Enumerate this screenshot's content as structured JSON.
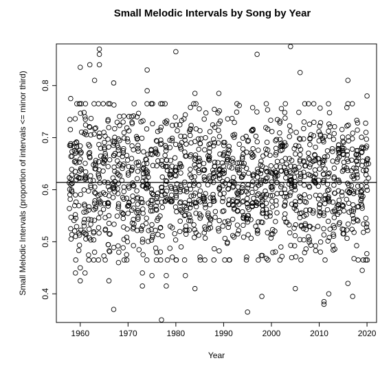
{
  "chart_data": {
    "type": "scatter",
    "title": "Small Melodic Intervals by Song by Year",
    "xlabel": "Year",
    "ylabel": "Small Melodic Intervals (proportion of intervals <= minor third)",
    "xlim": [
      1955,
      2022
    ],
    "ylim": [
      0.345,
      0.88
    ],
    "xticks": [
      1960,
      1970,
      1980,
      1990,
      2000,
      2010,
      2020
    ],
    "yticks": [
      0.4,
      0.5,
      0.6,
      0.7,
      0.8
    ],
    "marker": "open-circle",
    "point_color": "#000000",
    "hline": {
      "y": 0.614,
      "label": ""
    },
    "years": [
      1958,
      2020
    ],
    "points_per_year": 24,
    "points": [
      [
        1958,
        0.775
      ],
      [
        1958,
        0.685
      ],
      [
        1958,
        0.525
      ],
      [
        1958,
        0.61
      ],
      [
        1959,
        0.44
      ],
      [
        1959,
        0.59
      ],
      [
        1959,
        0.67
      ],
      [
        1960,
        0.835
      ],
      [
        1960,
        0.45
      ],
      [
        1960,
        0.425
      ],
      [
        1961,
        0.74
      ],
      [
        1961,
        0.62
      ],
      [
        1961,
        0.44
      ],
      [
        1962,
        0.84
      ],
      [
        1962,
        0.72
      ],
      [
        1963,
        0.81
      ],
      [
        1963,
        0.48
      ],
      [
        1964,
        0.87
      ],
      [
        1964,
        0.86
      ],
      [
        1964,
        0.84
      ],
      [
        1966,
        0.425
      ],
      [
        1966,
        0.55
      ],
      [
        1967,
        0.37
      ],
      [
        1967,
        0.805
      ],
      [
        1968,
        0.46
      ],
      [
        1973,
        0.415
      ],
      [
        1973,
        0.44
      ],
      [
        1974,
        0.83
      ],
      [
        1974,
        0.79
      ],
      [
        1975,
        0.435
      ],
      [
        1977,
        0.35
      ],
      [
        1978,
        0.435
      ],
      [
        1978,
        0.415
      ],
      [
        1980,
        0.865
      ],
      [
        1982,
        0.435
      ],
      [
        1984,
        0.785
      ],
      [
        1984,
        0.41
      ],
      [
        1989,
        0.785
      ],
      [
        1995,
        0.365
      ],
      [
        1997,
        0.86
      ],
      [
        1998,
        0.395
      ],
      [
        2004,
        0.875
      ],
      [
        2005,
        0.41
      ],
      [
        2006,
        0.825
      ],
      [
        2011,
        0.385
      ],
      [
        2011,
        0.38
      ],
      [
        2012,
        0.4
      ],
      [
        2016,
        0.81
      ],
      [
        2016,
        0.42
      ],
      [
        2017,
        0.395
      ],
      [
        2019,
        0.445
      ],
      [
        2020,
        0.78
      ]
    ]
  }
}
